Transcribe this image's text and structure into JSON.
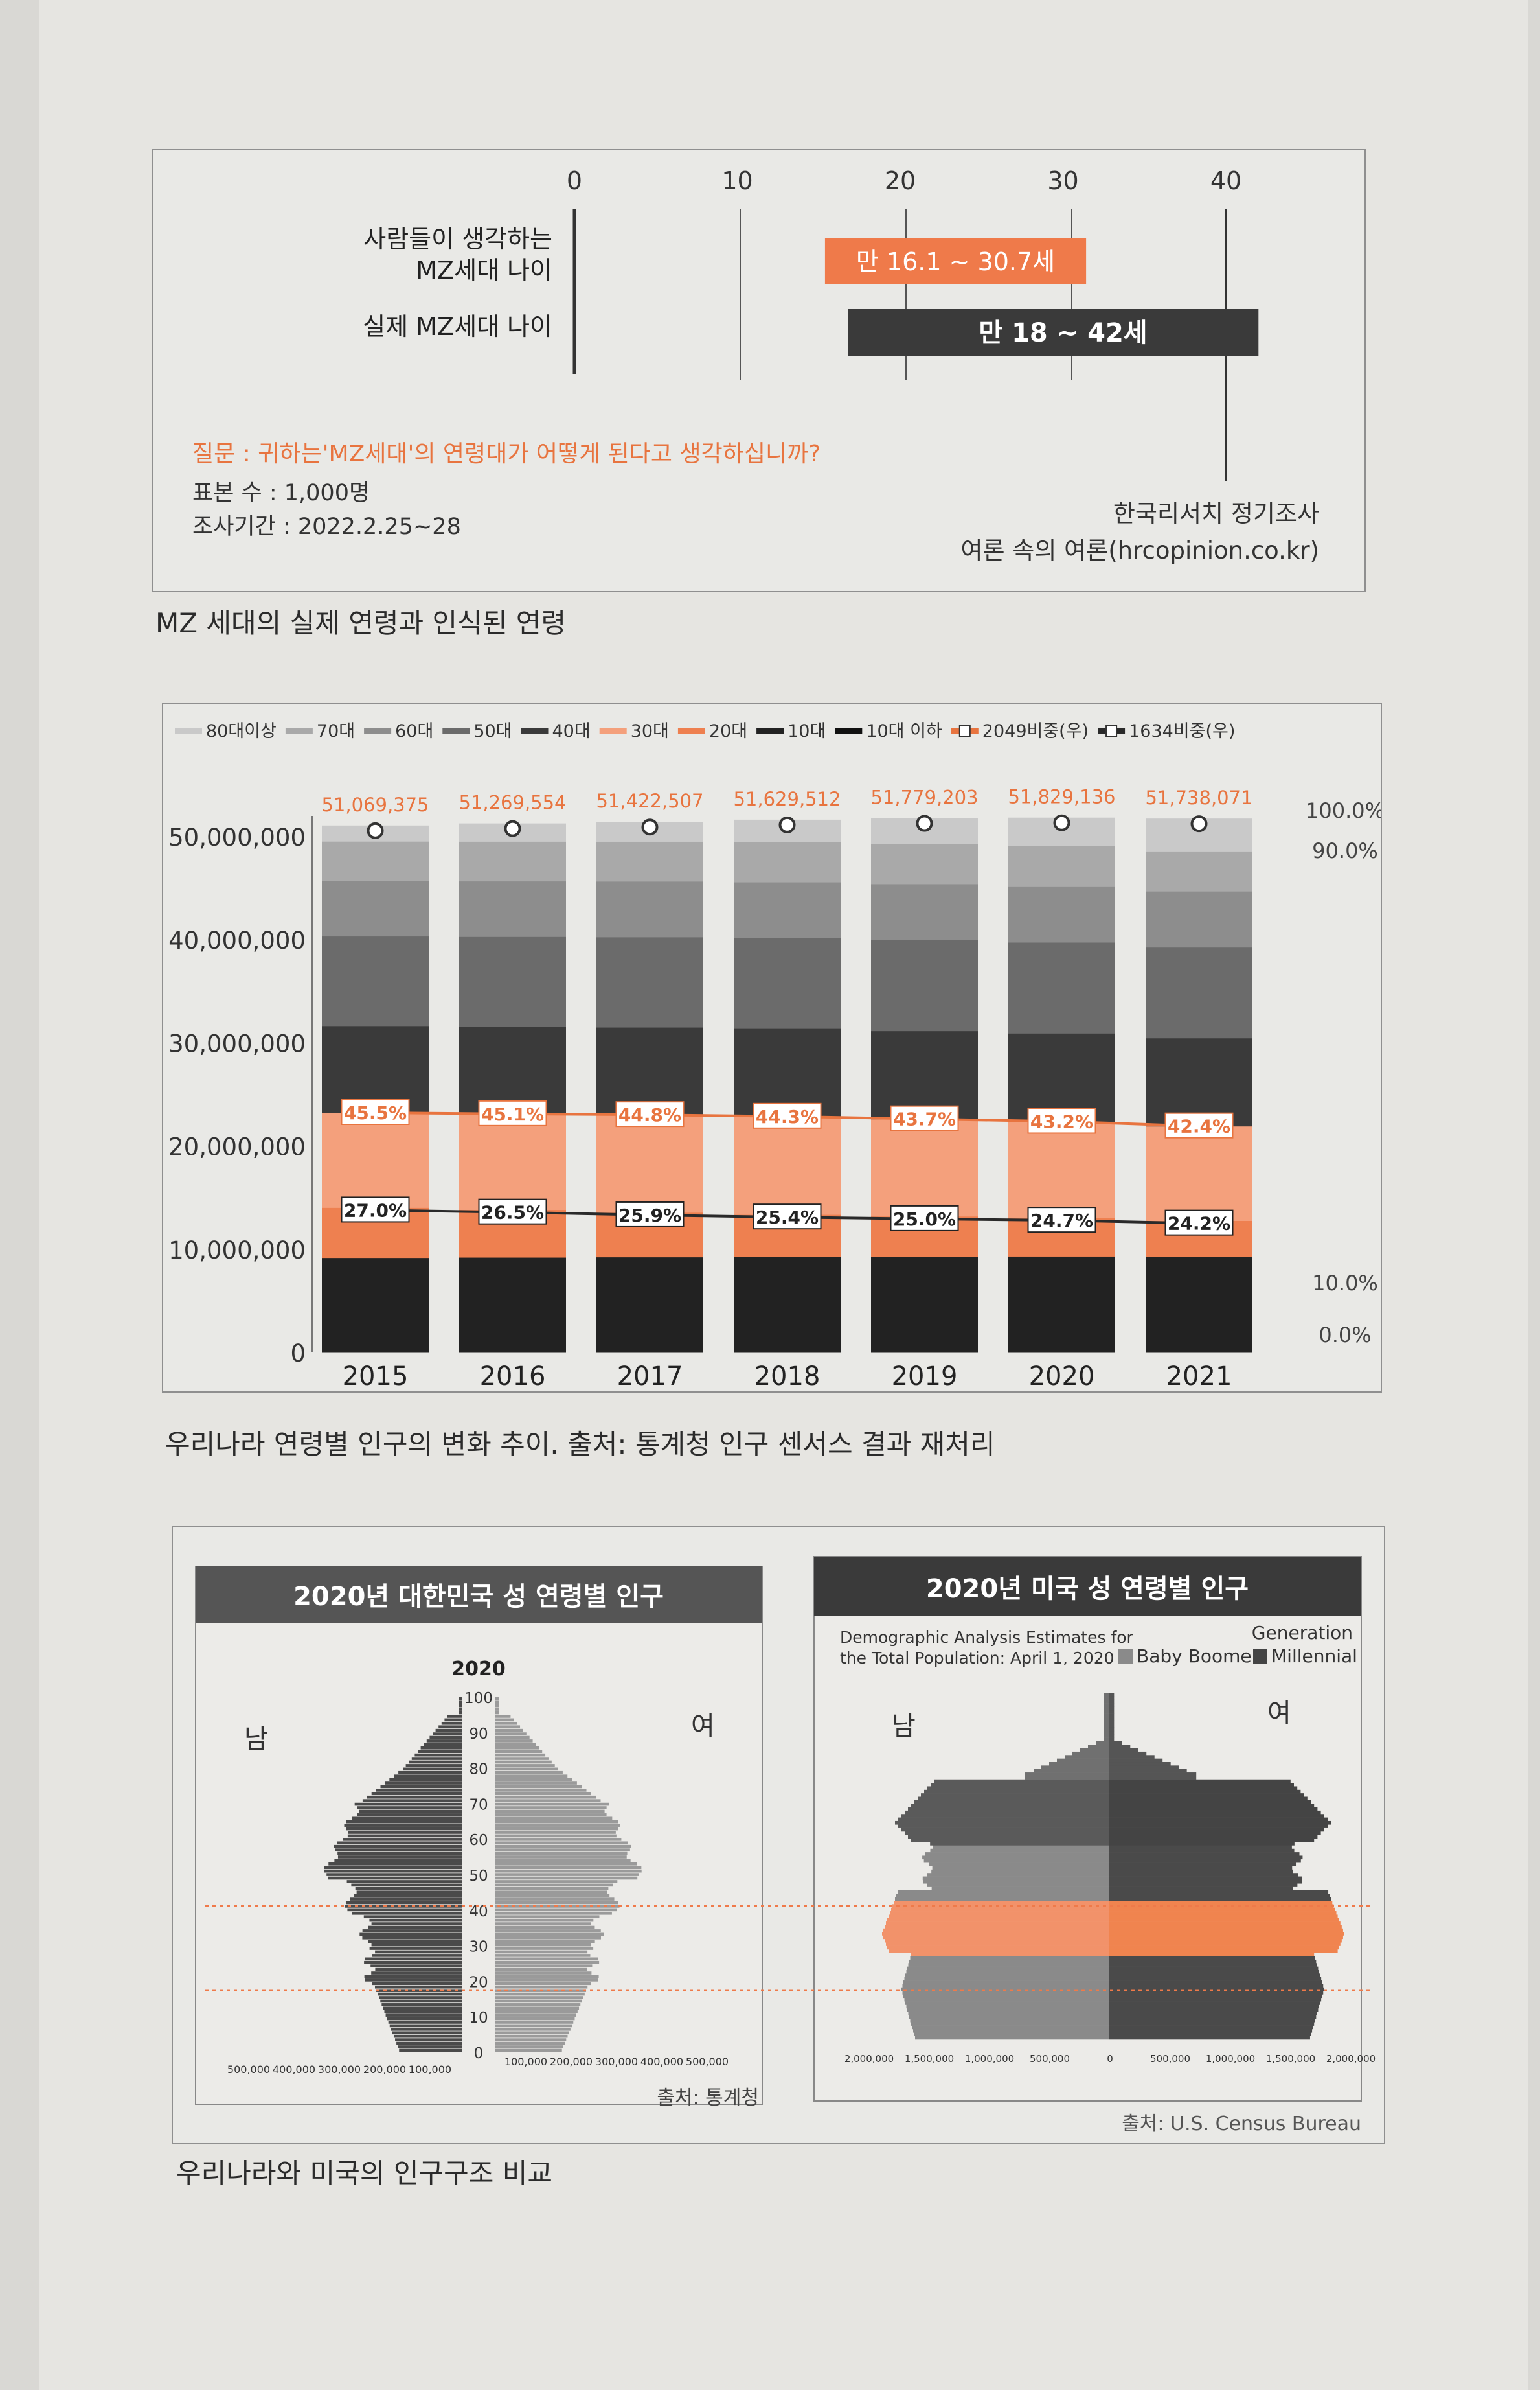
{
  "fig1": {
    "axis_ticks": [
      "0",
      "10",
      "20",
      "30",
      "40"
    ],
    "row1_label_line1": "사람들이 생각하는",
    "row1_label_line2": "MZ세대 나이",
    "row2_label": "실제 MZ세대 나이",
    "bar1_label": "만 16.1 ~ 30.7세",
    "bar2_label": "만 18 ~ 42세",
    "chart_data": {
      "type": "bar",
      "categories": [
        "사람들이 생각하는 MZ세대 나이",
        "실제 MZ세대 나이"
      ],
      "ranges": [
        [
          16.1,
          30.7
        ],
        [
          18,
          42
        ]
      ],
      "xlim": [
        0,
        40
      ],
      "colors": [
        "#ef7a4a",
        "#3a3a3a"
      ]
    },
    "question": "질문 : 귀하는'MZ세대'의 연령대가 어떻게 된다고 생각하십니까?",
    "sample": "표본 수 : 1,000명",
    "period": "조사기간 : 2022.2.25~28",
    "source1": "한국리서치 정기조사",
    "source2": "여론 속의 여론(hrcopinion.co.kr)",
    "caption": "MZ 세대의 실제 연령과 인식된 연령"
  },
  "fig2": {
    "legend": [
      "80대이상",
      "70대",
      "60대",
      "50대",
      "40대",
      "30대",
      "20대",
      "10대",
      "10대 이하",
      "2049비중(우)",
      "1634비중(우)"
    ],
    "y_ticks": [
      "0",
      "10,000,000",
      "20,000,000",
      "30,000,000",
      "40,000,000",
      "50,000,000"
    ],
    "right_ticks": [
      "100.0%",
      "90.0%",
      "10.0%",
      "0.0%"
    ],
    "chart_data": {
      "type": "bar",
      "categories": [
        "2015",
        "2016",
        "2017",
        "2018",
        "2019",
        "2020",
        "2021"
      ],
      "totals": [
        51069375,
        51269554,
        51422507,
        51629512,
        51779203,
        51829136,
        51738071
      ],
      "total_labels": [
        "51,069,375",
        "51,269,554",
        "51,422,507",
        "51,629,512",
        "51,779,203",
        "51,829,136",
        "51,738,071"
      ],
      "ratio_2049": [
        45.5,
        45.1,
        44.8,
        44.3,
        43.7,
        43.2,
        42.4
      ],
      "ratio_2049_labels": [
        "45.5%",
        "45.1%",
        "44.8%",
        "44.3%",
        "43.7%",
        "43.2%",
        "42.4%"
      ],
      "ratio_1634": [
        27.0,
        26.5,
        25.9,
        25.4,
        25.0,
        24.7,
        24.2
      ],
      "ratio_1634_labels": [
        "27.0%",
        "26.5%",
        "25.9%",
        "25.4%",
        "25.0%",
        "24.7%",
        "24.2%"
      ],
      "ylim": [
        0,
        50000000
      ],
      "colors": {
        "seg_80": "#c9c9c9",
        "seg_70": "#a9a9a9",
        "seg_60": "#8d8d8d",
        "seg_50": "#6b6b6b",
        "seg_40": "#3a3a3a",
        "seg_30": "#f4a07c",
        "seg_20": "#ee8050",
        "seg_10": "#222222",
        "line_2049": "#e8743f",
        "line_1634": "#2a2a2a"
      }
    },
    "caption": "우리나라 연령별 인구의 변화 추이. 출처: 통계청 인구 센서스 결과 재처리"
  },
  "fig3": {
    "kr_title": "2020년 대한민국 성 연령별 인구",
    "kr_year": "2020",
    "kr_male": "남",
    "kr_female": "여",
    "kr_age_ticks": [
      "100",
      "90",
      "80",
      "70",
      "60",
      "50",
      "40",
      "30",
      "20",
      "10",
      "0"
    ],
    "kr_x_left": [
      "500,000",
      "400,000",
      "300,000",
      "200,000",
      "100,000"
    ],
    "kr_x_right": [
      "100,000",
      "200,000",
      "300,000",
      "400,000",
      "500,000"
    ],
    "kr_source": "출처: 통계청",
    "us_title": "2020년 미국 성 연령별 인구",
    "us_sub1": "Demographic Analysis Estimates for",
    "us_sub2": "the Total Population: April 1, 2020",
    "us_gen": "Generation",
    "us_legend1": "Baby Boomer",
    "us_legend2": "Millennial",
    "us_male": "남",
    "us_female": "여",
    "us_x": [
      "2,000,000",
      "1,500,000",
      "1,000,000",
      "500,000",
      "0",
      "500,000",
      "1,000,000",
      "1,500,000",
      "2,000,000"
    ],
    "us_source": "출처: U.S. Census Bureau",
    "caption": "우리나라와 미국의 인구구조 비교"
  }
}
